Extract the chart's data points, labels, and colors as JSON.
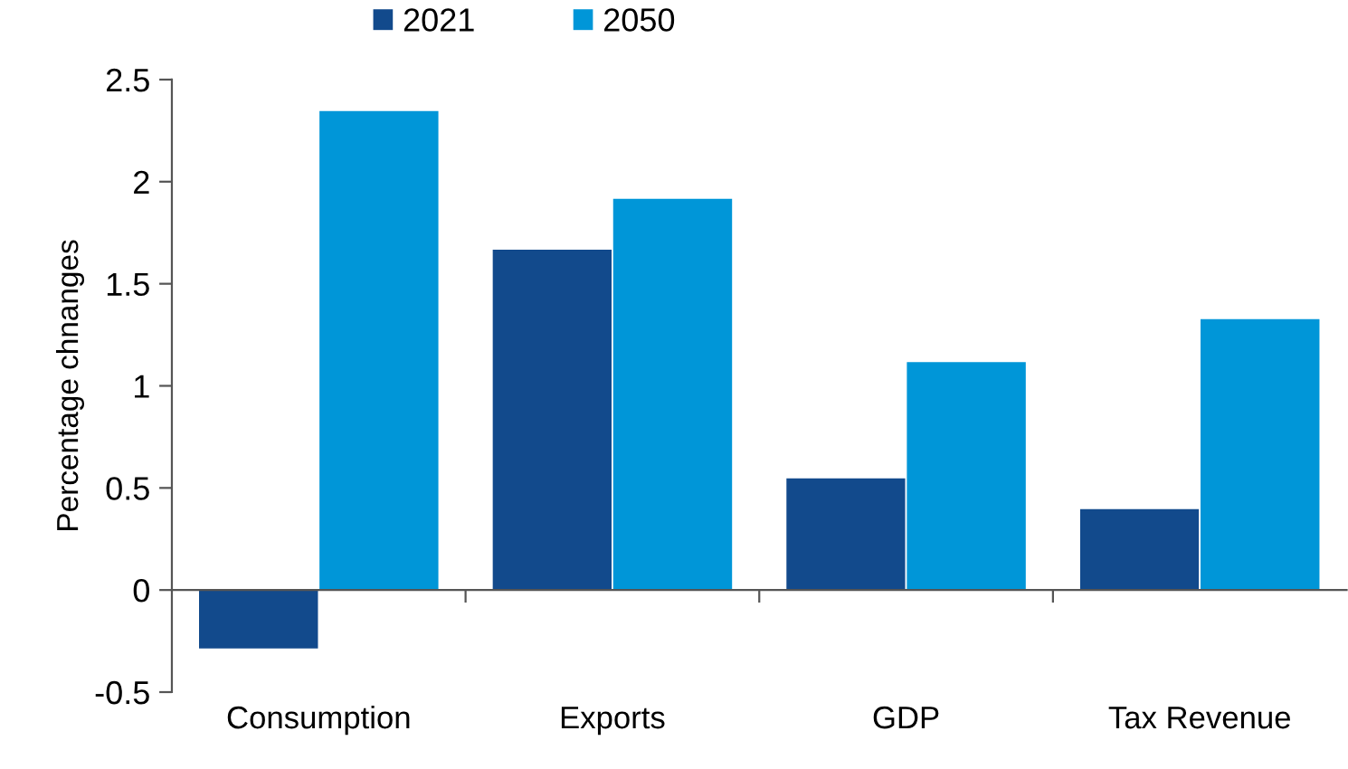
{
  "chart_data": {
    "type": "bar",
    "ylabel": "Percentage chnanges",
    "categories": [
      "Consumption",
      "Exports",
      "GDP",
      "Tax Revenue"
    ],
    "series": [
      {
        "name": "2021",
        "color": "#124a8c",
        "values": [
          -0.29,
          1.67,
          0.55,
          0.4
        ]
      },
      {
        "name": "2050",
        "color": "#0096d8",
        "values": [
          2.35,
          1.92,
          1.12,
          1.33
        ]
      }
    ],
    "ylim": [
      -0.5,
      2.5
    ],
    "yticks": [
      -0.5,
      0,
      0.5,
      1,
      1.5,
      2,
      2.5
    ],
    "legend": "top"
  }
}
